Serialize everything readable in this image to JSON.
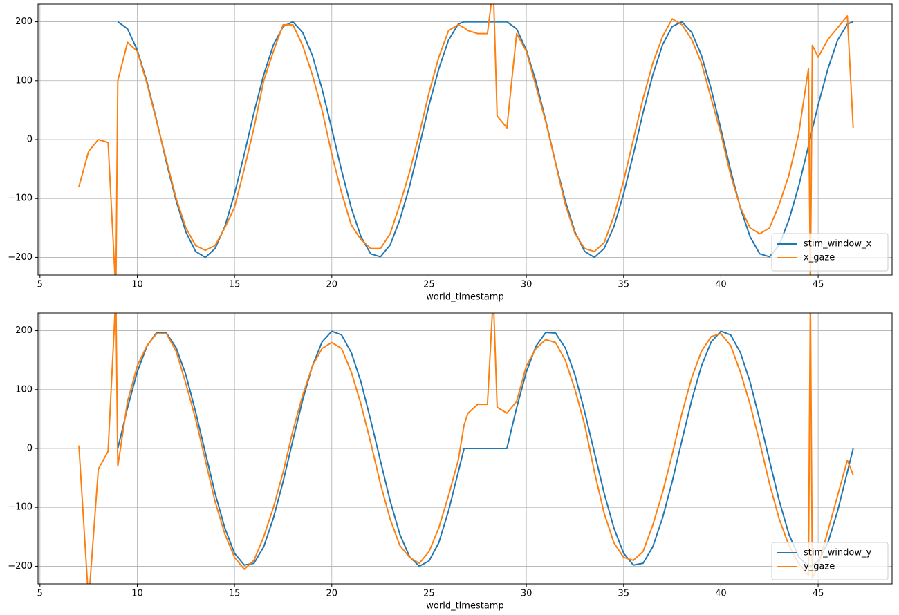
{
  "chart_data": [
    {
      "type": "line",
      "xlabel": "world_timestamp",
      "x": [
        7.0,
        7.5,
        8.0,
        8.5,
        8.9,
        9.0,
        9.5,
        10.0,
        10.5,
        11.0,
        11.5,
        12.0,
        12.5,
        13.0,
        13.5,
        14.0,
        14.5,
        15.0,
        15.5,
        16.0,
        16.5,
        17.0,
        17.5,
        18.0,
        18.5,
        19.0,
        19.5,
        20.0,
        20.5,
        21.0,
        21.5,
        22.0,
        22.5,
        23.0,
        23.5,
        24.0,
        24.5,
        25.0,
        25.5,
        26.0,
        26.5,
        26.8,
        27.0,
        27.5,
        28.0,
        28.3,
        28.5,
        29.0,
        29.5,
        30.0,
        30.5,
        31.0,
        31.5,
        32.0,
        32.5,
        33.0,
        33.5,
        34.0,
        34.5,
        35.0,
        35.5,
        36.0,
        36.5,
        37.0,
        37.5,
        38.0,
        38.5,
        39.0,
        39.5,
        40.0,
        40.5,
        41.0,
        41.5,
        42.0,
        42.5,
        43.0,
        43.5,
        44.0,
        44.5,
        44.6,
        44.7,
        45.0,
        45.5,
        46.0,
        46.5,
        46.8
      ],
      "series": [
        {
          "name": "stim_window_x",
          "color": "#1f77b4",
          "values": [
            null,
            null,
            null,
            null,
            null,
            200,
            188,
            152,
            98,
            32,
            -39,
            -104,
            -157,
            -190,
            -200,
            -185,
            -148,
            -92,
            -25,
            46,
            110,
            161,
            192,
            200,
            182,
            143,
            86,
            18,
            -52,
            -116,
            -165,
            -194,
            -199,
            -179,
            -136,
            -79,
            -11,
            59,
            120,
            169,
            196,
            200,
            200,
            200,
            200,
            200,
            200,
            200,
            188,
            152,
            98,
            32,
            -39,
            -104,
            -157,
            -190,
            -200,
            -185,
            -148,
            -92,
            -25,
            46,
            110,
            161,
            192,
            200,
            182,
            143,
            86,
            18,
            -52,
            -116,
            -165,
            -194,
            -199,
            -179,
            -136,
            -79,
            -11,
            4,
            18,
            59,
            120,
            169,
            196,
            200
          ]
        },
        {
          "name": "x_gaze",
          "color": "#ff7f0e",
          "values": [
            -80,
            -20,
            0,
            -5,
            -260,
            100,
            165,
            150,
            95,
            30,
            -35,
            -100,
            -150,
            -180,
            -188,
            -180,
            -150,
            -115,
            -50,
            20,
            100,
            150,
            195,
            195,
            160,
            110,
            50,
            -25,
            -90,
            -145,
            -170,
            -185,
            -185,
            -160,
            -110,
            -55,
            10,
            80,
            140,
            185,
            195,
            190,
            185,
            180,
            180,
            260,
            40,
            20,
            180,
            150,
            90,
            30,
            -40,
            -110,
            -160,
            -185,
            -190,
            -175,
            -130,
            -70,
            0,
            70,
            130,
            175,
            205,
            195,
            170,
            130,
            70,
            10,
            -60,
            -115,
            -150,
            -160,
            -150,
            -110,
            -60,
            10,
            120,
            -260,
            160,
            140,
            170,
            190,
            210,
            20
          ]
        }
      ],
      "xlim": [
        4.9,
        48.8
      ],
      "ylim": [
        -230,
        230
      ],
      "xticks": [
        5,
        10,
        15,
        20,
        25,
        30,
        35,
        40,
        45
      ],
      "yticks": [
        {
          "value": -200,
          "label": "−200"
        },
        {
          "value": -100,
          "label": "−100"
        },
        0,
        100,
        200
      ],
      "grid": true,
      "legend": "lower right"
    },
    {
      "type": "line",
      "xlabel": "world_timestamp",
      "x": [
        7.0,
        7.5,
        8.0,
        8.5,
        8.9,
        9.0,
        9.5,
        10.0,
        10.5,
        11.0,
        11.5,
        12.0,
        12.5,
        13.0,
        13.5,
        14.0,
        14.5,
        15.0,
        15.5,
        16.0,
        16.5,
        17.0,
        17.5,
        18.0,
        18.5,
        19.0,
        19.5,
        20.0,
        20.5,
        21.0,
        21.5,
        22.0,
        22.5,
        23.0,
        23.5,
        24.0,
        24.5,
        25.0,
        25.5,
        26.0,
        26.5,
        26.8,
        27.0,
        27.5,
        28.0,
        28.3,
        28.5,
        29.0,
        29.5,
        30.0,
        30.5,
        31.0,
        31.5,
        32.0,
        32.5,
        33.0,
        33.5,
        34.0,
        34.5,
        35.0,
        35.5,
        36.0,
        36.5,
        37.0,
        37.5,
        38.0,
        38.5,
        39.0,
        39.5,
        40.0,
        40.5,
        41.0,
        41.5,
        42.0,
        42.5,
        43.0,
        43.5,
        44.0,
        44.5,
        44.6,
        44.7,
        45.0,
        45.5,
        46.0,
        46.5,
        46.8
      ],
      "series": [
        {
          "name": "stim_window_y",
          "color": "#1f77b4",
          "values": [
            null,
            null,
            null,
            null,
            null,
            0,
            69,
            130,
            174,
            197,
            196,
            171,
            125,
            62,
            -7,
            -76,
            -135,
            -178,
            -198,
            -195,
            -167,
            -118,
            -56,
            14,
            82,
            140,
            181,
            199,
            193,
            163,
            113,
            48,
            -21,
            -89,
            -146,
            -184,
            -200,
            -191,
            -160,
            -106,
            -40,
            0,
            0,
            0,
            0,
            0,
            0,
            0,
            69,
            130,
            174,
            197,
            196,
            171,
            125,
            62,
            -7,
            -76,
            -135,
            -178,
            -198,
            -195,
            -167,
            -118,
            -56,
            14,
            82,
            140,
            181,
            199,
            193,
            163,
            113,
            48,
            -21,
            -89,
            -146,
            -184,
            -200,
            -200,
            -199,
            -191,
            -160,
            -106,
            -40,
            0
          ]
        },
        {
          "name": "y_gaze",
          "color": "#ff7f0e",
          "values": [
            5,
            -260,
            -35,
            -5,
            260,
            -30,
            80,
            140,
            175,
            195,
            195,
            165,
            110,
            50,
            -20,
            -90,
            -145,
            -185,
            -205,
            -190,
            -150,
            -100,
            -40,
            30,
            90,
            140,
            170,
            180,
            170,
            130,
            75,
            10,
            -60,
            -120,
            -165,
            -185,
            -195,
            -175,
            -135,
            -80,
            -20,
            40,
            60,
            75,
            75,
            260,
            70,
            60,
            80,
            140,
            170,
            185,
            180,
            150,
            100,
            40,
            -40,
            -110,
            -160,
            -185,
            -190,
            -175,
            -130,
            -75,
            -10,
            60,
            120,
            165,
            190,
            195,
            175,
            130,
            75,
            10,
            -60,
            -120,
            -165,
            -195,
            -215,
            260,
            -220,
            -200,
            -140,
            -80,
            -20,
            -45
          ]
        }
      ],
      "xlim": [
        4.9,
        48.8
      ],
      "ylim": [
        -230,
        230
      ],
      "xticks": [
        5,
        10,
        15,
        20,
        25,
        30,
        35,
        40,
        45
      ],
      "yticks": [
        {
          "value": -200,
          "label": "−200"
        },
        {
          "value": -100,
          "label": "−100"
        },
        0,
        100,
        200
      ],
      "grid": true,
      "legend": "lower right"
    }
  ]
}
